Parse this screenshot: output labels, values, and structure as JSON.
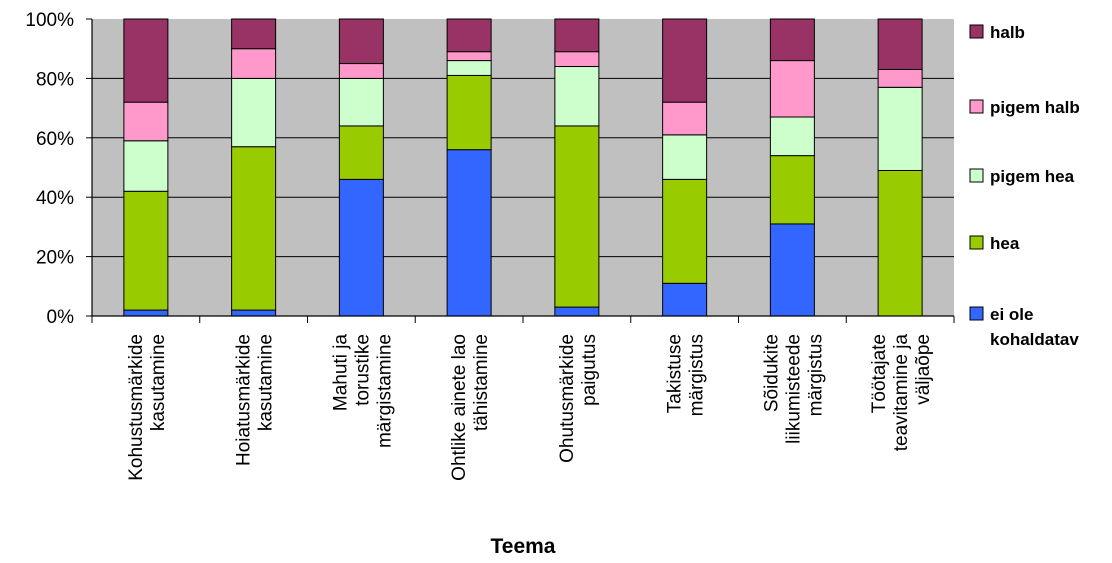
{
  "chart_data": {
    "type": "bar",
    "stacked": true,
    "normalized": true,
    "xlabel": "Teema",
    "ylabel": "",
    "ylim": [
      0,
      100
    ],
    "yticks": [
      "0%",
      "20%",
      "40%",
      "60%",
      "80%",
      "100%"
    ],
    "grid": true,
    "legend_position": "right",
    "categories": [
      [
        "Kohustusmärkide",
        "kasutamine"
      ],
      [
        "Hoiatusmärkide",
        "kasutamine"
      ],
      [
        "Mahuti ja",
        "torustike",
        "märgistamine"
      ],
      [
        "Ohtlike ainete lao",
        "tähistamine"
      ],
      [
        "Ohutusmärkide",
        "paigutus"
      ],
      [
        "Takistuse",
        "märgistus"
      ],
      [
        "Sõidukite",
        "liikumisteede",
        "märgistus"
      ],
      [
        "Töötajate",
        "teavitamine ja",
        "väljaõpe"
      ]
    ],
    "series": [
      {
        "name": "ei ole kohaldatav",
        "color": "#3366FF",
        "values": [
          2,
          2,
          46,
          56,
          3,
          11,
          31,
          0
        ]
      },
      {
        "name": "hea",
        "color": "#99CC00",
        "values": [
          40,
          55,
          18,
          25,
          61,
          35,
          23,
          49
        ]
      },
      {
        "name": "pigem hea",
        "color": "#CCFFCC",
        "values": [
          17,
          23,
          16,
          5,
          20,
          15,
          13,
          28
        ]
      },
      {
        "name": "pigem halb",
        "color": "#FF99CC",
        "values": [
          13,
          10,
          5,
          3,
          5,
          11,
          19,
          6
        ]
      },
      {
        "name": "halb",
        "color": "#993366",
        "values": [
          28,
          10,
          15,
          11,
          11,
          28,
          14,
          17
        ]
      }
    ],
    "legend": [
      {
        "lines": [
          "halb"
        ],
        "color": "#993366"
      },
      {
        "lines": [
          "pigem halb"
        ],
        "color": "#FF99CC"
      },
      {
        "lines": [
          "pigem hea"
        ],
        "color": "#CCFFCC"
      },
      {
        "lines": [
          "hea"
        ],
        "color": "#99CC00"
      },
      {
        "lines": [
          "ei ole",
          "kohaldatav"
        ],
        "color": "#3366FF"
      }
    ],
    "plot_background": "#C0C0C0"
  }
}
